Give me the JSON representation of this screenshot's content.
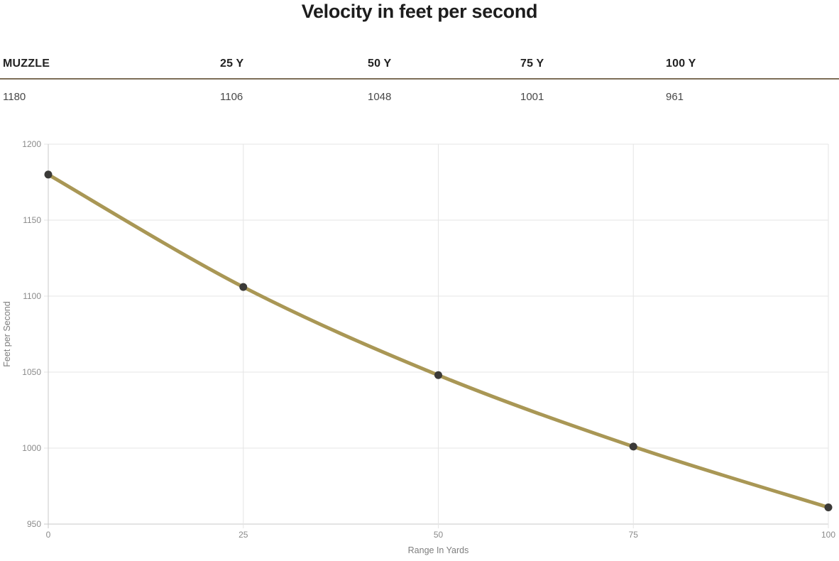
{
  "title": "Velocity in feet per second",
  "table": {
    "columns": [
      {
        "header": "MUZZLE",
        "value": "1180"
      },
      {
        "header": "25 Y",
        "value": "1106"
      },
      {
        "header": "50 Y",
        "value": "1048"
      },
      {
        "header": "75 Y",
        "value": "1001"
      },
      {
        "header": "100 Y",
        "value": "961"
      }
    ]
  },
  "chart_data": {
    "type": "line",
    "title": "Velocity in feet per second",
    "x": [
      0,
      25,
      50,
      75,
      100
    ],
    "values": [
      1180,
      1106,
      1048,
      1001,
      961
    ],
    "xlabel": "Range In Yards",
    "ylabel": "Feet per Second",
    "xlim": [
      0,
      100
    ],
    "ylim": [
      950,
      1200
    ],
    "x_ticks": [
      0,
      25,
      50,
      75,
      100
    ],
    "y_ticks": [
      950,
      1000,
      1050,
      1100,
      1150,
      1200
    ],
    "grid": true,
    "legend": "none",
    "line_color": "#a99755",
    "point_color": "#3b3a38"
  },
  "colors": {
    "table_rule": "#7d6e58",
    "grid_line": "#e5e5e5",
    "axis_line": "#c9c9c9",
    "tick_label": "#8a8a8a",
    "axis_title": "#7e7e7e"
  }
}
